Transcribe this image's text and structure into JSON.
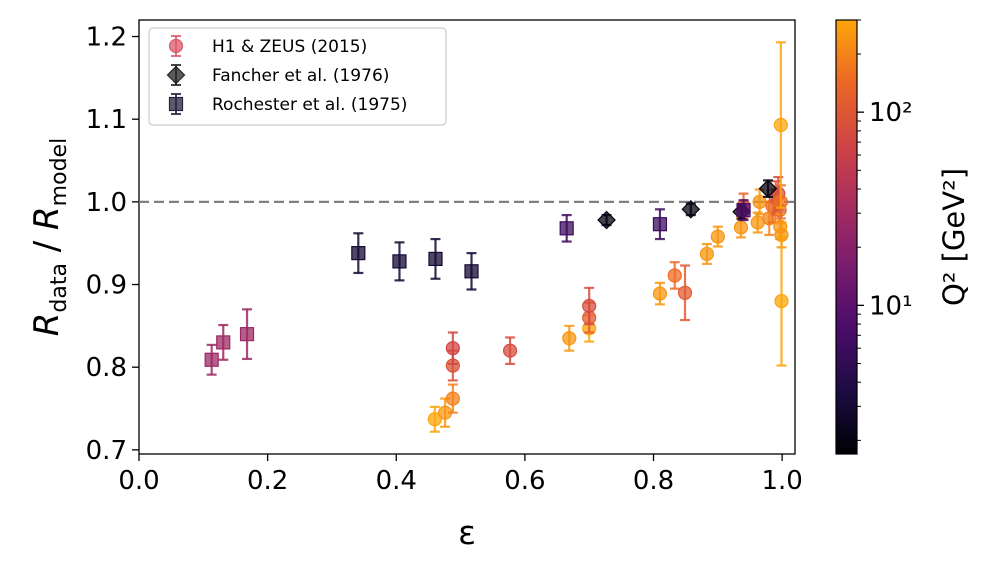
{
  "chart_data": {
    "type": "scatter",
    "xlabel": "ε",
    "ylabel": {
      "R1": "R",
      "sub1": "data",
      "mid": " / ",
      "R2": "R",
      "sub2": "model"
    },
    "xlim": [
      0.0,
      1.02
    ],
    "ylim": [
      0.695,
      1.22
    ],
    "xticks": [
      0.0,
      0.2,
      0.4,
      0.6,
      0.8,
      1.0
    ],
    "xtick_labels": [
      "0.0",
      "0.2",
      "0.4",
      "0.6",
      "0.8",
      "1.0"
    ],
    "yticks": [
      0.7,
      0.8,
      0.9,
      1.0,
      1.1,
      1.2
    ],
    "ytick_labels": [
      "0.7",
      "0.8",
      "0.9",
      "1.0",
      "1.1",
      "1.2"
    ],
    "reference_line": {
      "y": 1.0,
      "style": "dashed",
      "color": "#808080"
    },
    "grid": false,
    "legend_position": "top-left",
    "colorbar": {
      "label": "Q² [GeV²]",
      "scale": "log",
      "range": [
        1.7,
        300
      ],
      "ticks": [
        {
          "value": 10,
          "label": "10¹"
        },
        {
          "value": 100,
          "label": "10²"
        }
      ]
    },
    "series": [
      {
        "name": "H1 & ZEUS (2015)",
        "marker": "circle",
        "points": [
          {
            "x": 0.46,
            "y": 0.737,
            "err": 0.015,
            "q2": 300
          },
          {
            "x": 0.476,
            "y": 0.745,
            "err": 0.017,
            "q2": 250
          },
          {
            "x": 0.488,
            "y": 0.762,
            "err": 0.017,
            "q2": 200
          },
          {
            "x": 0.488,
            "y": 0.802,
            "err": 0.018,
            "q2": 90
          },
          {
            "x": 0.488,
            "y": 0.823,
            "err": 0.019,
            "q2": 70
          },
          {
            "x": 0.577,
            "y": 0.82,
            "err": 0.016,
            "q2": 80
          },
          {
            "x": 0.669,
            "y": 0.835,
            "err": 0.015,
            "q2": 250
          },
          {
            "x": 0.7,
            "y": 0.847,
            "err": 0.016,
            "q2": 300
          },
          {
            "x": 0.7,
            "y": 0.86,
            "err": 0.018,
            "q2": 110
          },
          {
            "x": 0.7,
            "y": 0.874,
            "err": 0.022,
            "q2": 80
          },
          {
            "x": 0.81,
            "y": 0.889,
            "err": 0.013,
            "q2": 250
          },
          {
            "x": 0.833,
            "y": 0.911,
            "err": 0.016,
            "q2": 150
          },
          {
            "x": 0.849,
            "y": 0.89,
            "err": 0.033,
            "q2": 110
          },
          {
            "x": 0.883,
            "y": 0.937,
            "err": 0.012,
            "q2": 250
          },
          {
            "x": 0.9,
            "y": 0.958,
            "err": 0.012,
            "q2": 250
          },
          {
            "x": 0.936,
            "y": 0.969,
            "err": 0.012,
            "q2": 250
          },
          {
            "x": 0.94,
            "y": 0.995,
            "err": 0.015,
            "q2": 130
          },
          {
            "x": 0.962,
            "y": 0.975,
            "err": 0.012,
            "q2": 250
          },
          {
            "x": 0.965,
            "y": 1.0,
            "err": 0.015,
            "q2": 250
          },
          {
            "x": 0.98,
            "y": 0.98,
            "err": 0.02,
            "q2": 200
          },
          {
            "x": 0.985,
            "y": 0.995,
            "err": 0.02,
            "q2": 150
          },
          {
            "x": 0.99,
            "y": 1.005,
            "err": 0.02,
            "q2": 100
          },
          {
            "x": 0.994,
            "y": 1.01,
            "err": 0.02,
            "q2": 80
          },
          {
            "x": 0.996,
            "y": 0.99,
            "err": 0.015,
            "q2": 110
          },
          {
            "x": 0.997,
            "y": 0.97,
            "err": 0.015,
            "q2": 250
          },
          {
            "x": 0.998,
            "y": 1.0,
            "err": 0.02,
            "q2": 150
          },
          {
            "x": 0.999,
            "y": 0.96,
            "err": 0.015,
            "q2": 250
          },
          {
            "x": 0.998,
            "y": 1.093,
            "err": 0.1,
            "q2": 300
          },
          {
            "x": 0.999,
            "y": 0.88,
            "err": 0.078,
            "q2": 300
          }
        ]
      },
      {
        "name": "Fancher et al. (1976)",
        "marker": "diamond",
        "points": [
          {
            "x": 0.727,
            "y": 0.978,
            "err": 0.006,
            "q2": 2.0
          },
          {
            "x": 0.858,
            "y": 0.991,
            "err": 0.007,
            "q2": 2.0
          },
          {
            "x": 0.937,
            "y": 0.988,
            "err": 0.009,
            "q2": 2.0
          },
          {
            "x": 0.978,
            "y": 1.016,
            "err": 0.01,
            "q2": 2.0
          }
        ]
      },
      {
        "name": "Rochester et al. (1975)",
        "marker": "square",
        "points": [
          {
            "x": 0.113,
            "y": 0.809,
            "err": 0.018,
            "q2": 28
          },
          {
            "x": 0.131,
            "y": 0.83,
            "err": 0.021,
            "q2": 28
          },
          {
            "x": 0.168,
            "y": 0.84,
            "err": 0.03,
            "q2": 28
          },
          {
            "x": 0.341,
            "y": 0.938,
            "err": 0.024,
            "q2": 3
          },
          {
            "x": 0.405,
            "y": 0.928,
            "err": 0.023,
            "q2": 3
          },
          {
            "x": 0.461,
            "y": 0.931,
            "err": 0.024,
            "q2": 3
          },
          {
            "x": 0.517,
            "y": 0.916,
            "err": 0.022,
            "q2": 3
          },
          {
            "x": 0.665,
            "y": 0.968,
            "err": 0.016,
            "q2": 6
          },
          {
            "x": 0.81,
            "y": 0.973,
            "err": 0.018,
            "q2": 6
          },
          {
            "x": 0.94,
            "y": 0.99,
            "err": 0.012,
            "q2": 8
          }
        ]
      }
    ]
  }
}
